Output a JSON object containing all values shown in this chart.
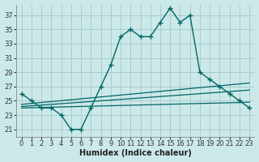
{
  "xlabel": "Humidex (Indice chaleur)",
  "background_color": "#cce9e9",
  "grid_color": "#aacccc",
  "line_color": "#006666",
  "xlim": [
    -0.5,
    23.5
  ],
  "ylim": [
    20.0,
    38.5
  ],
  "yticks": [
    21,
    23,
    25,
    27,
    29,
    31,
    33,
    35,
    37
  ],
  "xticks": [
    0,
    1,
    2,
    3,
    4,
    5,
    6,
    7,
    8,
    9,
    10,
    11,
    12,
    13,
    14,
    15,
    16,
    17,
    18,
    19,
    20,
    21,
    22,
    23
  ],
  "series": [
    {
      "x": [
        0,
        1,
        2,
        3,
        4,
        5,
        6,
        7,
        8,
        9,
        10,
        11,
        12,
        13,
        14,
        15,
        16,
        17,
        18,
        19,
        20,
        21,
        22,
        23
      ],
      "y": [
        26,
        25,
        24,
        24,
        23,
        21,
        21,
        24,
        27,
        30,
        34,
        35,
        34,
        34,
        36,
        38,
        36,
        37,
        29,
        28,
        27,
        26,
        25,
        24
      ],
      "marker": "+"
    },
    {
      "x": [
        0,
        23
      ],
      "y": [
        24.5,
        27.5
      ],
      "marker": null
    },
    {
      "x": [
        0,
        23
      ],
      "y": [
        24.2,
        26.5
      ],
      "marker": null
    },
    {
      "x": [
        0,
        23
      ],
      "y": [
        24.0,
        24.8
      ],
      "marker": null
    }
  ]
}
